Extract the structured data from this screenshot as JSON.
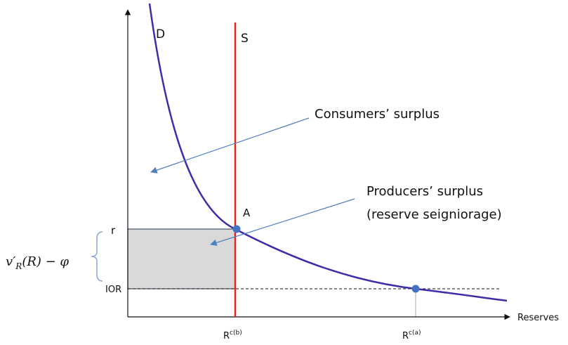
{
  "curves": {
    "demand": "D",
    "supply": "S"
  },
  "annotations": {
    "consumers": "Consumers’ surplus",
    "producers": "Producers’ surplus",
    "producers_note": "(reserve seigniorage)"
  },
  "points": {
    "a": "A"
  },
  "y_labels": {
    "r": "r",
    "ior": "IOR"
  },
  "brace_label": {
    "v": "v′",
    "sub": "R",
    "rest": "(R) − φ"
  },
  "x_axis": {
    "title": "Reserves",
    "rcb": {
      "base": "R",
      "sup": "c(b)"
    },
    "rca": {
      "base": "R",
      "sup": "c(a)"
    }
  }
}
